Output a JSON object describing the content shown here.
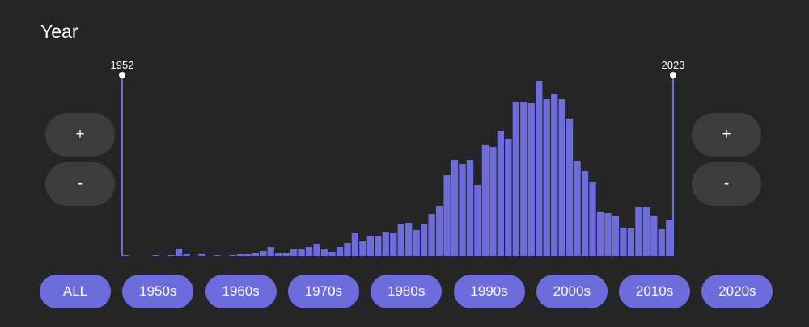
{
  "title": "Year",
  "histogram": {
    "type": "bar",
    "color": "#6c6cdc",
    "values": [
      1,
      0,
      0,
      0,
      1,
      0,
      1,
      9,
      3,
      0,
      3,
      0,
      1,
      0,
      1,
      2,
      3,
      4,
      6,
      11,
      4,
      4,
      8,
      8,
      11,
      15,
      8,
      5,
      11,
      16,
      29,
      18,
      25,
      25,
      30,
      29,
      39,
      41,
      32,
      40,
      52,
      62,
      100,
      119,
      114,
      119,
      88,
      138,
      135,
      155,
      145,
      191,
      191,
      189,
      217,
      195,
      201,
      194,
      170,
      117,
      105,
      92,
      55,
      53,
      50,
      35,
      34,
      61,
      61,
      50,
      33,
      45
    ]
  },
  "range": {
    "start": 1952,
    "end": 2023
  },
  "zoom_left": {
    "plus": "+",
    "minus": "-"
  },
  "zoom_right": {
    "plus": "+",
    "minus": "-"
  },
  "decades": [
    "ALL",
    "1950s",
    "1960s",
    "1970s",
    "1980s",
    "1990s",
    "2000s",
    "2010s",
    "2020s"
  ]
}
